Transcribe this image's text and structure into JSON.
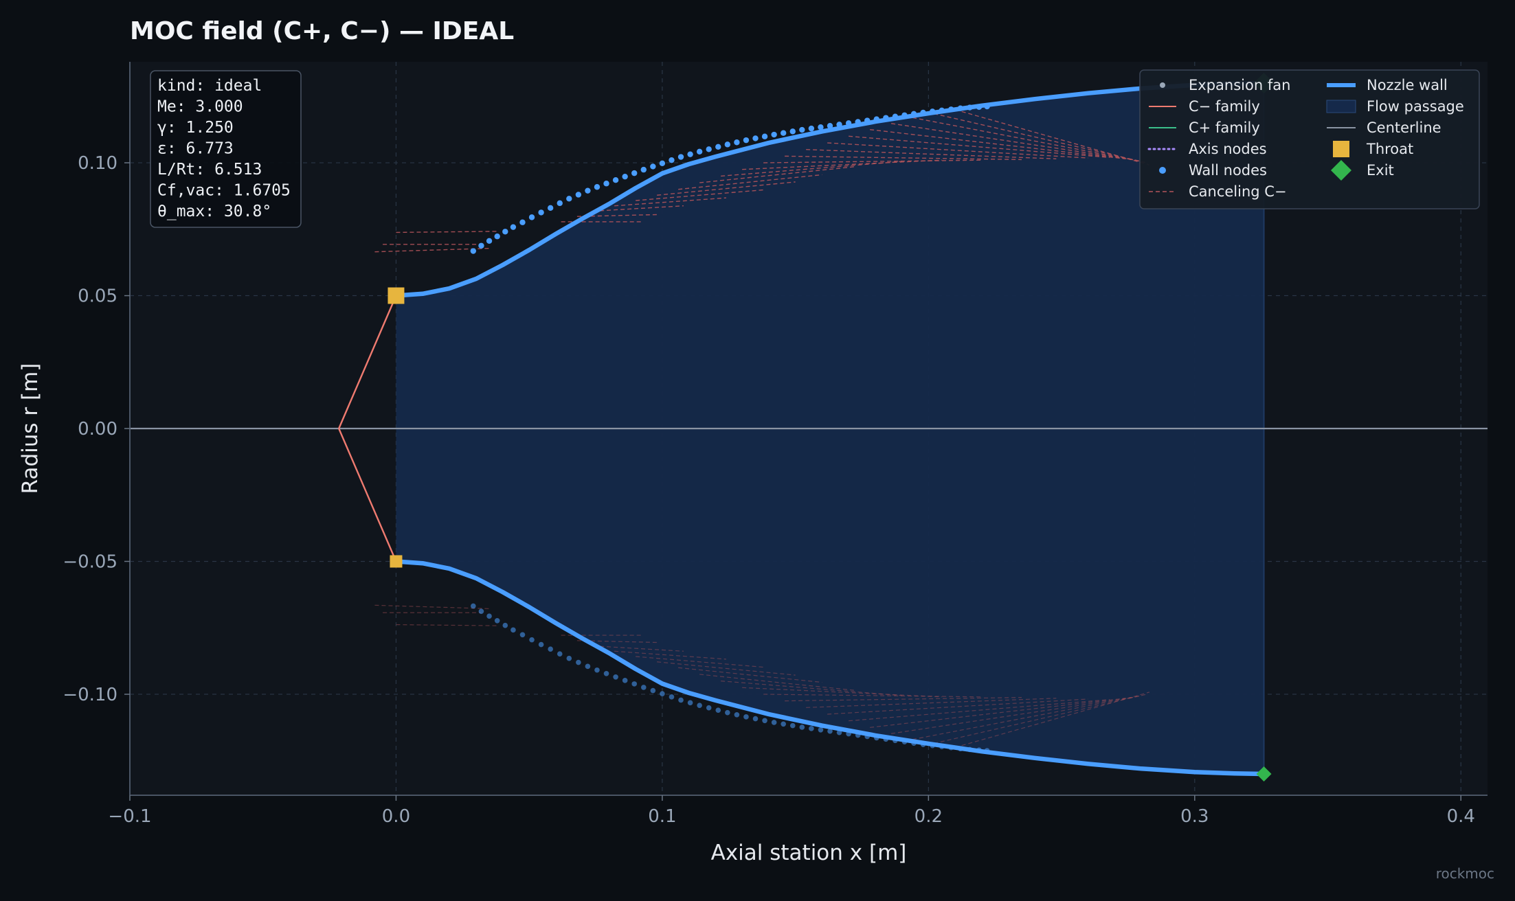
{
  "title": "MOC field (C+, C−) — IDEAL",
  "watermark": "rockmoc",
  "colors": {
    "background": "#0b0f14",
    "plot_bg": "#10151c",
    "wall": "#4a9eff",
    "c_minus": "#ef7b70",
    "c_plus": "#3bbf8a",
    "canceling": "#b3545a",
    "passage": "#15294a",
    "centerline": "#8a94a3",
    "throat": "#e7b53e",
    "exit": "#33b54d",
    "axis_nodes": "#a78bfa"
  },
  "info_box": [
    "kind: ideal",
    "Me: 3.000",
    "γ: 1.250",
    "ε: 6.773",
    "L/Rt: 6.513",
    "Cf,vac: 1.6705",
    "θ_max: 30.8°"
  ],
  "legend": {
    "placement": "top-right",
    "left": [
      "Expansion fan",
      "C− family",
      "C+ family",
      "Axis nodes",
      "Wall nodes",
      "Canceling C−"
    ],
    "right": [
      "Nozzle wall",
      "Flow passage",
      "Centerline",
      "Throat",
      "Exit"
    ]
  },
  "chart_data": {
    "type": "line",
    "title": "MOC field (C+, C−) — IDEAL",
    "xlabel": "Axial station  x  [m]",
    "ylabel": "Radius  r  [m]",
    "xlim": [
      -0.1,
      0.41
    ],
    "ylim": [
      -0.138,
      0.138
    ],
    "x_ticks": [
      -0.1,
      0.0,
      0.1,
      0.2,
      0.3,
      0.4
    ],
    "x_tick_labels": [
      "−0.1",
      "0.0",
      "0.1",
      "0.2",
      "0.3",
      "0.4"
    ],
    "y_ticks": [
      -0.1,
      -0.05,
      0.0,
      0.05,
      0.1
    ],
    "y_tick_labels": [
      "−0.10",
      "−0.05",
      "0.00",
      "0.05",
      "0.10"
    ],
    "grid": true,
    "nozzle_wall": {
      "x": [
        0.0,
        0.01,
        0.02,
        0.03,
        0.04,
        0.05,
        0.06,
        0.07,
        0.08,
        0.09,
        0.1,
        0.11,
        0.12,
        0.14,
        0.16,
        0.18,
        0.2,
        0.22,
        0.24,
        0.26,
        0.28,
        0.3,
        0.315,
        0.326
      ],
      "r": [
        0.05,
        0.0507,
        0.0527,
        0.0563,
        0.0615,
        0.0672,
        0.0732,
        0.079,
        0.0845,
        0.0905,
        0.096,
        0.0995,
        0.1023,
        0.1075,
        0.1118,
        0.1155,
        0.1186,
        0.1215,
        0.124,
        0.1262,
        0.128,
        0.1293,
        0.1298,
        0.13
      ]
    },
    "wall_nodes": {
      "x": [
        0.029,
        0.032,
        0.035,
        0.038,
        0.041,
        0.044,
        0.0475,
        0.051,
        0.0545,
        0.058,
        0.0615,
        0.065,
        0.0685,
        0.072,
        0.0755,
        0.079,
        0.0825,
        0.086,
        0.0895,
        0.093,
        0.0965,
        0.1,
        0.1035,
        0.107,
        0.1105,
        0.114,
        0.1175,
        0.121,
        0.1245,
        0.128,
        0.1315,
        0.135,
        0.1385,
        0.142,
        0.1455,
        0.149,
        0.1525,
        0.156,
        0.1595,
        0.163,
        0.1665,
        0.17,
        0.1735,
        0.177,
        0.1805,
        0.184,
        0.1875,
        0.191,
        0.1945,
        0.198,
        0.2015,
        0.205,
        0.2085,
        0.212,
        0.2155,
        0.219,
        0.222
      ],
      "r": [
        0.0668,
        0.0688,
        0.0706,
        0.0723,
        0.0741,
        0.0758,
        0.0776,
        0.0795,
        0.0813,
        0.083,
        0.0848,
        0.0865,
        0.088,
        0.0895,
        0.0909,
        0.0922,
        0.0935,
        0.0948,
        0.0961,
        0.0974,
        0.0986,
        0.0998,
        0.101,
        0.1022,
        0.1032,
        0.1042,
        0.1051,
        0.106,
        0.1069,
        0.1077,
        0.1085,
        0.1092,
        0.1099,
        0.1106,
        0.1112,
        0.1118,
        0.1124,
        0.1129,
        0.1134,
        0.1139,
        0.1144,
        0.1149,
        0.1154,
        0.1159,
        0.1164,
        0.1169,
        0.1174,
        0.1179,
        0.1184,
        0.1189,
        0.1193,
        0.1197,
        0.1201,
        0.1205,
        0.1208,
        0.121,
        0.1212
      ]
    },
    "expansion_fan": {
      "x": [
        -0.0215,
        0.0
      ],
      "r": [
        0.0,
        0.05
      ]
    },
    "canceling_c_minus": [
      {
        "x": [
          -0.008,
          0.035
        ],
        "r": [
          0.0665,
          0.0678
        ]
      },
      {
        "x": [
          -0.005,
          0.032
        ],
        "r": [
          0.0693,
          0.0693
        ]
      },
      {
        "x": [
          0.0,
          0.038
        ],
        "r": [
          0.0738,
          0.0742
        ]
      },
      {
        "x": [
          0.062,
          0.092
        ],
        "r": [
          0.0778,
          0.0778
        ]
      },
      {
        "x": [
          0.068,
          0.098
        ],
        "r": [
          0.0798,
          0.0805
        ]
      },
      {
        "x": [
          0.074,
          0.108
        ],
        "r": [
          0.0818,
          0.0838
        ]
      },
      {
        "x": [
          0.082,
          0.124
        ],
        "r": [
          0.0838,
          0.0868
        ]
      },
      {
        "x": [
          0.09,
          0.138
        ],
        "r": [
          0.0858,
          0.0898
        ]
      },
      {
        "x": [
          0.098,
          0.15
        ],
        "r": [
          0.0878,
          0.0928
        ]
      },
      {
        "x": [
          0.106,
          0.16
        ],
        "r": [
          0.09,
          0.0955
        ]
      },
      {
        "x": [
          0.114,
          0.172
        ],
        "r": [
          0.0925,
          0.0985
        ]
      },
      {
        "x": [
          0.122,
          0.19
        ],
        "r": [
          0.095,
          0.1005
        ]
      },
      {
        "x": [
          0.13,
          0.205
        ],
        "r": [
          0.0975,
          0.101
        ]
      },
      {
        "x": [
          0.138,
          0.22
        ],
        "r": [
          0.1,
          0.101
        ]
      },
      {
        "x": [
          0.146,
          0.235
        ],
        "r": [
          0.1025,
          0.1012
        ]
      },
      {
        "x": [
          0.154,
          0.248
        ],
        "r": [
          0.105,
          0.1015
        ]
      },
      {
        "x": [
          0.162,
          0.26
        ],
        "r": [
          0.1075,
          0.1018
        ]
      },
      {
        "x": [
          0.17,
          0.268
        ],
        "r": [
          0.11,
          0.102
        ]
      },
      {
        "x": [
          0.178,
          0.274
        ],
        "r": [
          0.1125,
          0.1015
        ]
      },
      {
        "x": [
          0.186,
          0.278
        ],
        "r": [
          0.1148,
          0.101
        ]
      },
      {
        "x": [
          0.194,
          0.28
        ],
        "r": [
          0.117,
          0.1005
        ]
      },
      {
        "x": [
          0.202,
          0.282
        ],
        "r": [
          0.1185,
          0.1
        ]
      },
      {
        "x": [
          0.21,
          0.283
        ],
        "r": [
          0.12,
          0.0992
        ]
      }
    ],
    "flow_passage": {
      "x": [
        0.0,
        0.326
      ]
    },
    "centerline": {
      "x": [
        -0.1,
        0.41
      ],
      "r": [
        0.0,
        0.0
      ]
    },
    "throat": {
      "x": 0.0,
      "r": [
        0.05,
        -0.05
      ]
    },
    "exit": {
      "x": 0.326,
      "r": [
        0.13,
        -0.13
      ]
    }
  }
}
